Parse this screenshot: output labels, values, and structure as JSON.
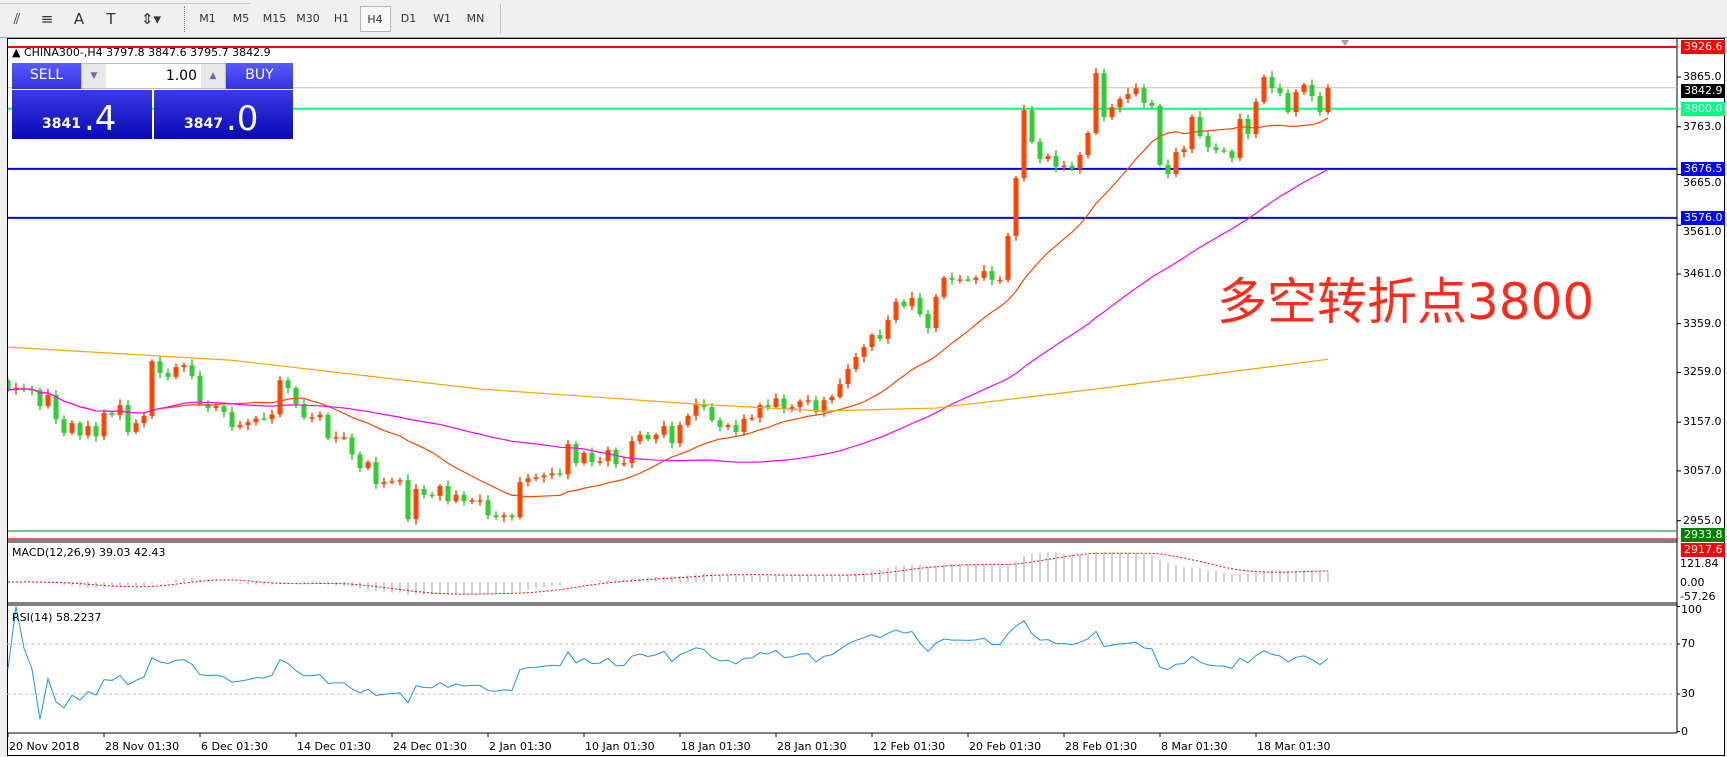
{
  "toolbar": {
    "tools": [
      {
        "icon": "fibonacci-expansion-icon",
        "glyph": "⫽"
      },
      {
        "icon": "fibonacci-levels-icon",
        "glyph": "≡"
      },
      {
        "icon": "text-icon",
        "glyph": "A"
      },
      {
        "icon": "text-label-icon",
        "glyph": "T"
      },
      {
        "icon": "arrows-dropdown-icon",
        "glyph": "⇕▾"
      }
    ],
    "timeframes": [
      "M1",
      "M5",
      "M15",
      "M30",
      "H1",
      "H4",
      "D1",
      "W1",
      "MN"
    ],
    "active_timeframe": "H4"
  },
  "chart": {
    "symbol_info": "CHINA300-,H4  3797.8 3847.6 3795.7 3842.9",
    "annotation": "多空转折点3800"
  },
  "trade_panel": {
    "sell_label": "SELL",
    "buy_label": "BUY",
    "lot": "1.00",
    "sell_price_main": "3841",
    "sell_price_frac": ".4",
    "buy_price_main": "3847",
    "buy_price_frac": ".0"
  },
  "price_axis": {
    "ticks": [
      "3865.0",
      "3763.0",
      "3665.0",
      "3561.0",
      "3461.0",
      "3359.0",
      "3259.0",
      "3157.0",
      "3057.0",
      "2955.0"
    ],
    "levels": [
      {
        "value": "3926.6",
        "color": "#ff0000",
        "text_color": "#ffffff",
        "line": "solid"
      },
      {
        "value": "3842.9",
        "color": "#000000",
        "text_color": "#ffffff",
        "line": "bid"
      },
      {
        "value": "3800.0",
        "color": "#00ff7f",
        "text_color": "#ffffff",
        "line": "solid"
      },
      {
        "value": "3676.5",
        "color": "#0000ff",
        "text_color": "#ffffff",
        "line": "thick"
      },
      {
        "value": "3576.0",
        "color": "#0000ff",
        "text_color": "#ffffff",
        "line": "thick"
      },
      {
        "value": "2933.8",
        "color": "#008000",
        "text_color": "#ffffff",
        "line": "solid"
      },
      {
        "value": "2917.6",
        "color": "#ff0000",
        "text_color": "#ffffff",
        "line": "solid"
      }
    ]
  },
  "macd": {
    "label": "MACD(12,26,9) 39.03 42.43",
    "ticks": [
      "121.84",
      "0.00",
      "-57.26"
    ]
  },
  "rsi": {
    "label": "RSI(14) 58.2237",
    "ticks": [
      "100",
      "70",
      "30",
      "0"
    ],
    "levels": [
      70,
      30
    ]
  },
  "time_axis": [
    "20 Nov 2018",
    "28 Nov 01:30",
    "6 Dec 01:30",
    "14 Dec 01:30",
    "24 Dec 01:30",
    "2 Jan 01:30",
    "10 Jan 01:30",
    "18 Jan 01:30",
    "28 Jan 01:30",
    "12 Feb 01:30",
    "20 Feb 01:30",
    "28 Feb 01:30",
    "8 Mar 01:30",
    "18 Mar 01:30"
  ],
  "chart_data": {
    "type": "candlestick",
    "symbol": "CHINA300-",
    "timeframe": "H4",
    "up_color": "#ff4500",
    "down_color": "#32cd32",
    "fast_ma_color": "#ff4500",
    "mid_ma_color": "#ff00ff",
    "slow_ma_color": "#ffa500",
    "close": [
      3223,
      3227,
      3225,
      3223,
      3190,
      3213,
      3163,
      3135,
      3155,
      3130,
      3149,
      3128,
      3176,
      3172,
      3192,
      3137,
      3155,
      3170,
      3282,
      3258,
      3250,
      3270,
      3274,
      3252,
      3194,
      3186,
      3190,
      3178,
      3147,
      3151,
      3157,
      3165,
      3163,
      3173,
      3243,
      3227,
      3194,
      3167,
      3167,
      3172,
      3124,
      3126,
      3126,
      3091,
      3063,
      3075,
      3030,
      3034,
      3036,
      3038,
      2958,
      3020,
      3008,
      3006,
      3026,
      2995,
      3008,
      2995,
      2997,
      2997,
      2966,
      2962,
      2966,
      2962,
      3034,
      3042,
      3044,
      3048,
      3052,
      3050,
      3112,
      3073,
      3094,
      3075,
      3077,
      3100,
      3071,
      3073,
      3118,
      3131,
      3122,
      3131,
      3149,
      3114,
      3151,
      3170,
      3194,
      3188,
      3161,
      3147,
      3151,
      3137,
      3164,
      3166,
      3192,
      3188,
      3206,
      3184,
      3188,
      3200,
      3202,
      3178,
      3202,
      3209,
      3235,
      3266,
      3291,
      3311,
      3336,
      3328,
      3367,
      3404,
      3395,
      3412,
      3379,
      3350,
      3414,
      3453,
      3449,
      3450,
      3449,
      3453,
      3467,
      3449,
      3449,
      3539,
      3658,
      3797,
      3732,
      3697,
      3703,
      3681,
      3683,
      3677,
      3705,
      3750,
      3873,
      3783,
      3803,
      3820,
      3830,
      3842,
      3812,
      3806,
      3685,
      3666,
      3711,
      3717,
      3783,
      3744,
      3721,
      3715,
      3713,
      3699,
      3779,
      3748,
      3814,
      3865,
      3842,
      3832,
      3793,
      3834,
      3849,
      3826,
      3793,
      3842.9
    ],
    "slow_ma_points": [
      [
        0,
        3311
      ],
      [
        28,
        3284
      ],
      [
        59,
        3225
      ],
      [
        86,
        3194
      ],
      [
        102,
        3180
      ],
      [
        116,
        3186
      ],
      [
        136,
        3225
      ],
      [
        165,
        3286
      ]
    ],
    "price_range": [
      2900,
      3930
    ]
  }
}
